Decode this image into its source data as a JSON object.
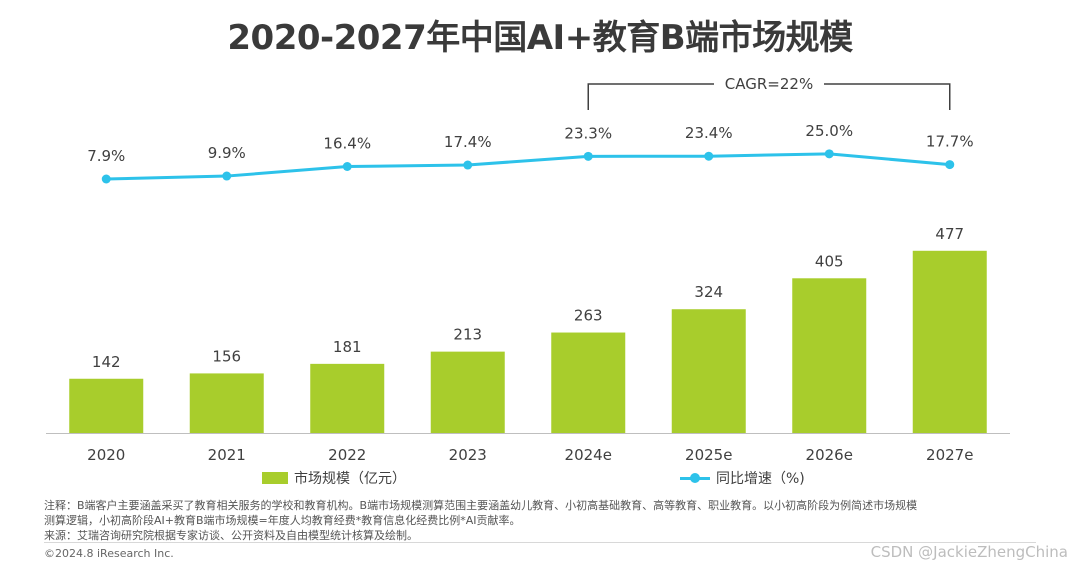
{
  "title": "2020-2027年中国AI+教育B端市场规模",
  "cagr_label": "CAGR=22%",
  "colors": {
    "bar": "#a8cd2c",
    "line": "#2dc2ea",
    "axis": "#bfbfbf",
    "text": "#404040"
  },
  "legend": {
    "bar_label": "市场规模（亿元）",
    "line_label": "同比增速（%)"
  },
  "chart_data": {
    "type": "bar",
    "categories": [
      "2020",
      "2021",
      "2022",
      "2023",
      "2024e",
      "2025e",
      "2026e",
      "2027e"
    ],
    "series": [
      {
        "name": "市场规模（亿元）",
        "type": "bar",
        "values": [
          142,
          156,
          181,
          213,
          263,
          324,
          405,
          477
        ],
        "labels": [
          "142",
          "156",
          "181",
          "213",
          "263",
          "324",
          "405",
          "477"
        ]
      },
      {
        "name": "同比增速（%)",
        "type": "line",
        "values": [
          7.9,
          9.9,
          16.4,
          17.4,
          23.3,
          23.4,
          25.0,
          17.7
        ],
        "labels": [
          "7.9%",
          "9.9%",
          "16.4%",
          "17.4%",
          "23.3%",
          "23.4%",
          "25.0%",
          "17.7%"
        ]
      }
    ],
    "annotation": {
      "text": "CAGR=22%",
      "from": "2024e",
      "to": "2027e"
    }
  },
  "notes": {
    "line1": "注释：B端客户主要涵盖采买了教育相关服务的学校和教育机构。B端市场规模测算范围主要涵盖幼儿教育、小初高基础教育、高等教育、职业教育。以小初高阶段为例简述市场规模",
    "line2": "测算逻辑，小初高阶段AI+教育B端市场规模=年度人均教育经费*教育信息化经费比例*AI贡献率。",
    "line3": "来源：艾瑞咨询研究院根据专家访谈、公开资料及自由模型统计核算及绘制。"
  },
  "copyright": "©2024.8 iResearch Inc.",
  "watermark": "CSDN @JackieZhengChina"
}
